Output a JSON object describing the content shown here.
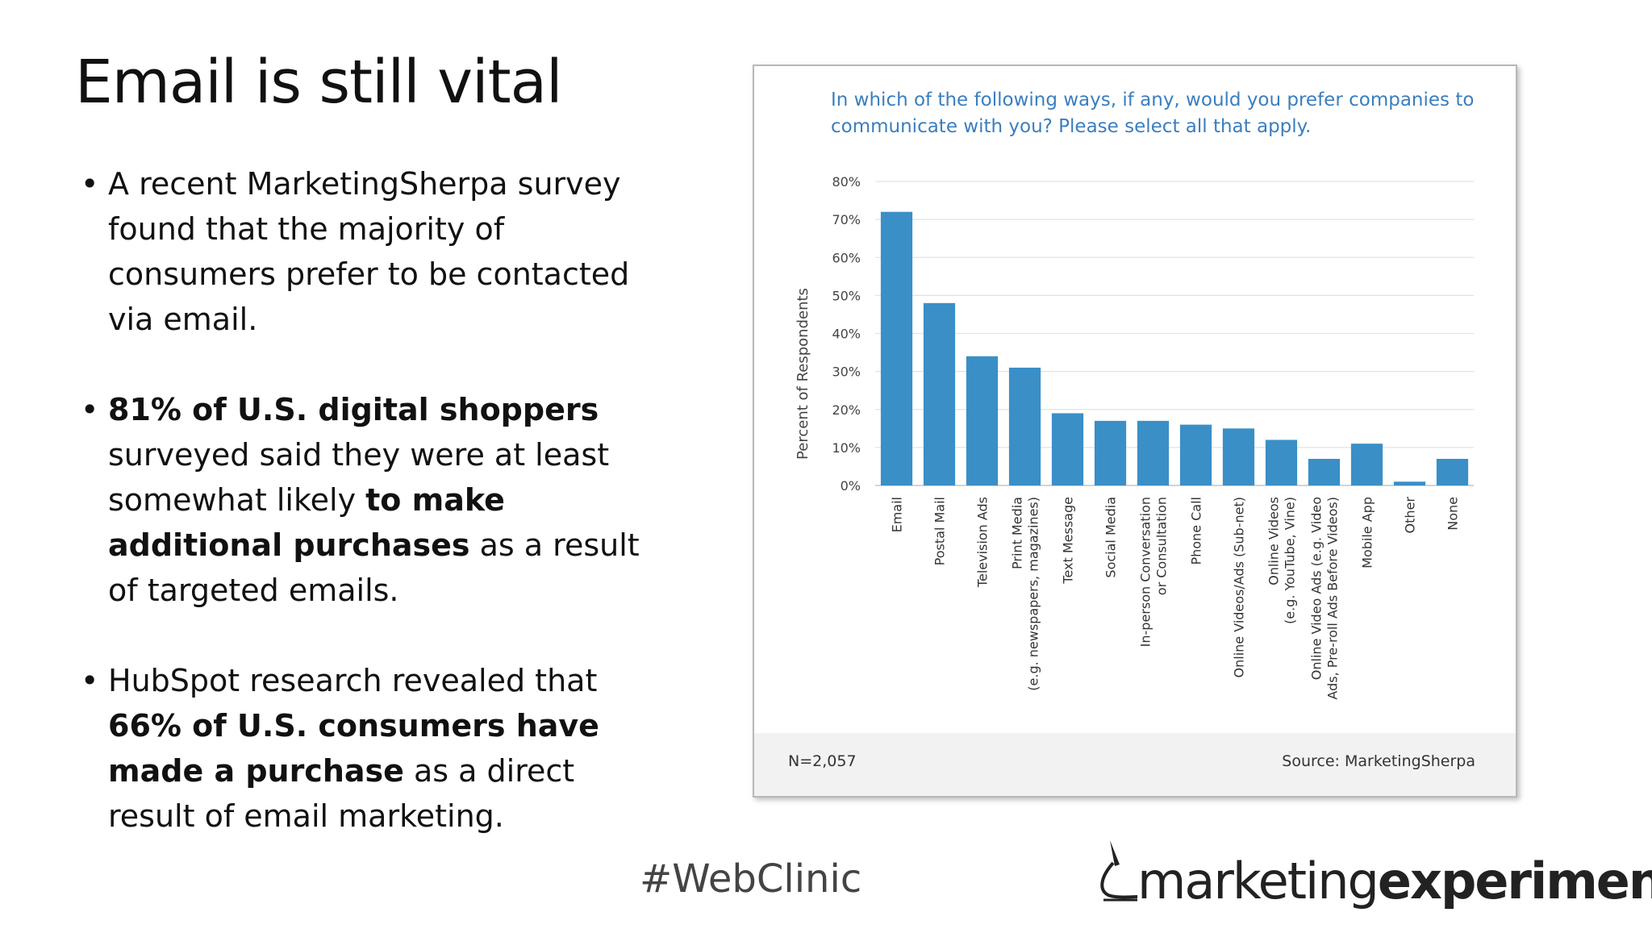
{
  "slide": {
    "title": "Email is still vital",
    "bullets": [
      {
        "text": "A recent MarketingSherpa survey found that the majority of consumers prefer to be contacted via email."
      },
      {
        "p1": "81% of U.S. digital shoppers",
        "p2": " surveyed said they were at least somewhat likely ",
        "p3": "to make additional purchases",
        "p4": " as a result of targeted emails."
      },
      {
        "p1": "HubSpot research revealed that ",
        "p2": "66% of U.S. consumers have made a purchase",
        "p3": " as a direct result of email marketing."
      }
    ]
  },
  "footer": {
    "hashtag": "#WebClinic",
    "logo_light": "marketing",
    "logo_bold": "experiments"
  },
  "chart_data": {
    "type": "bar",
    "title": "In which of the following ways, if any, would you prefer companies to communicate with you? Please select all that apply.",
    "ylabel": "Percent of Respondents",
    "xlabel": "",
    "ylim": [
      0,
      80
    ],
    "yticks": [
      "0%",
      "10%",
      "20%",
      "30%",
      "40%",
      "50%",
      "60%",
      "70%",
      "80%"
    ],
    "grid": true,
    "bar_color": "#3a8fc7",
    "categories": [
      [
        "Email"
      ],
      [
        "Postal Mail"
      ],
      [
        "Television Ads"
      ],
      [
        "Print Media",
        "(e.g. newspapers, magazines)"
      ],
      [
        "Text Message"
      ],
      [
        "Social Media"
      ],
      [
        "In-person Conversation",
        "or Consultation"
      ],
      [
        "Phone Call"
      ],
      [
        "Online Videos/Ads (Sub-net)"
      ],
      [
        "Online Videos",
        "(e.g. YouTube, Vine)"
      ],
      [
        "Online Video Ads (e.g. Video",
        "Ads, Pre-roll Ads Before Videos)"
      ],
      [
        "Mobile App"
      ],
      [
        "Other"
      ],
      [
        "None"
      ]
    ],
    "values": [
      72,
      48,
      34,
      31,
      19,
      17,
      17,
      16,
      15,
      12,
      7,
      11,
      1,
      7
    ],
    "note_left": "N=2,057",
    "note_right": "Source: MarketingSherpa"
  }
}
